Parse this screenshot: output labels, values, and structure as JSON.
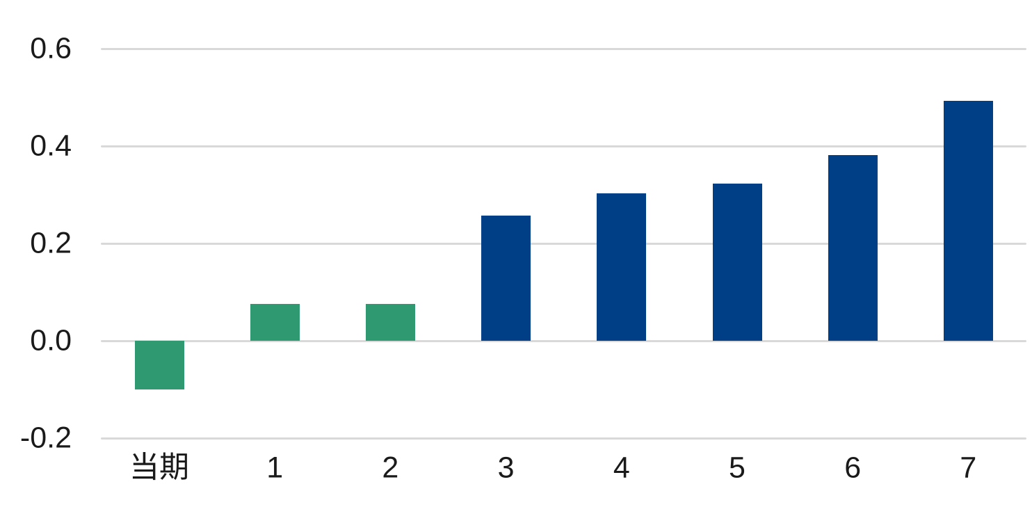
{
  "chart_data": {
    "type": "bar",
    "title": "",
    "xlabel": "",
    "ylabel": "",
    "categories": [
      "当期",
      "1",
      "2",
      "3",
      "4",
      "5",
      "6",
      "7"
    ],
    "values": [
      -0.1,
      0.076,
      0.076,
      0.257,
      0.303,
      0.323,
      0.381,
      0.493
    ],
    "bar_colors": [
      "#2f9a72",
      "#2f9a72",
      "#2f9a72",
      "#003e85",
      "#003e85",
      "#003e85",
      "#003e85",
      "#003e85"
    ],
    "ylim": [
      -0.2,
      0.6
    ],
    "yticks": [
      -0.2,
      0.0,
      0.2,
      0.4,
      0.6
    ],
    "ytick_labels": [
      "-0.2",
      "0.0",
      "0.2",
      "0.4",
      "0.6"
    ],
    "grid": "horizontal",
    "gridline_color": "#d9d9d9",
    "legend": "none",
    "text_color": "#1a1a1a",
    "background_color": "#ffffff"
  }
}
